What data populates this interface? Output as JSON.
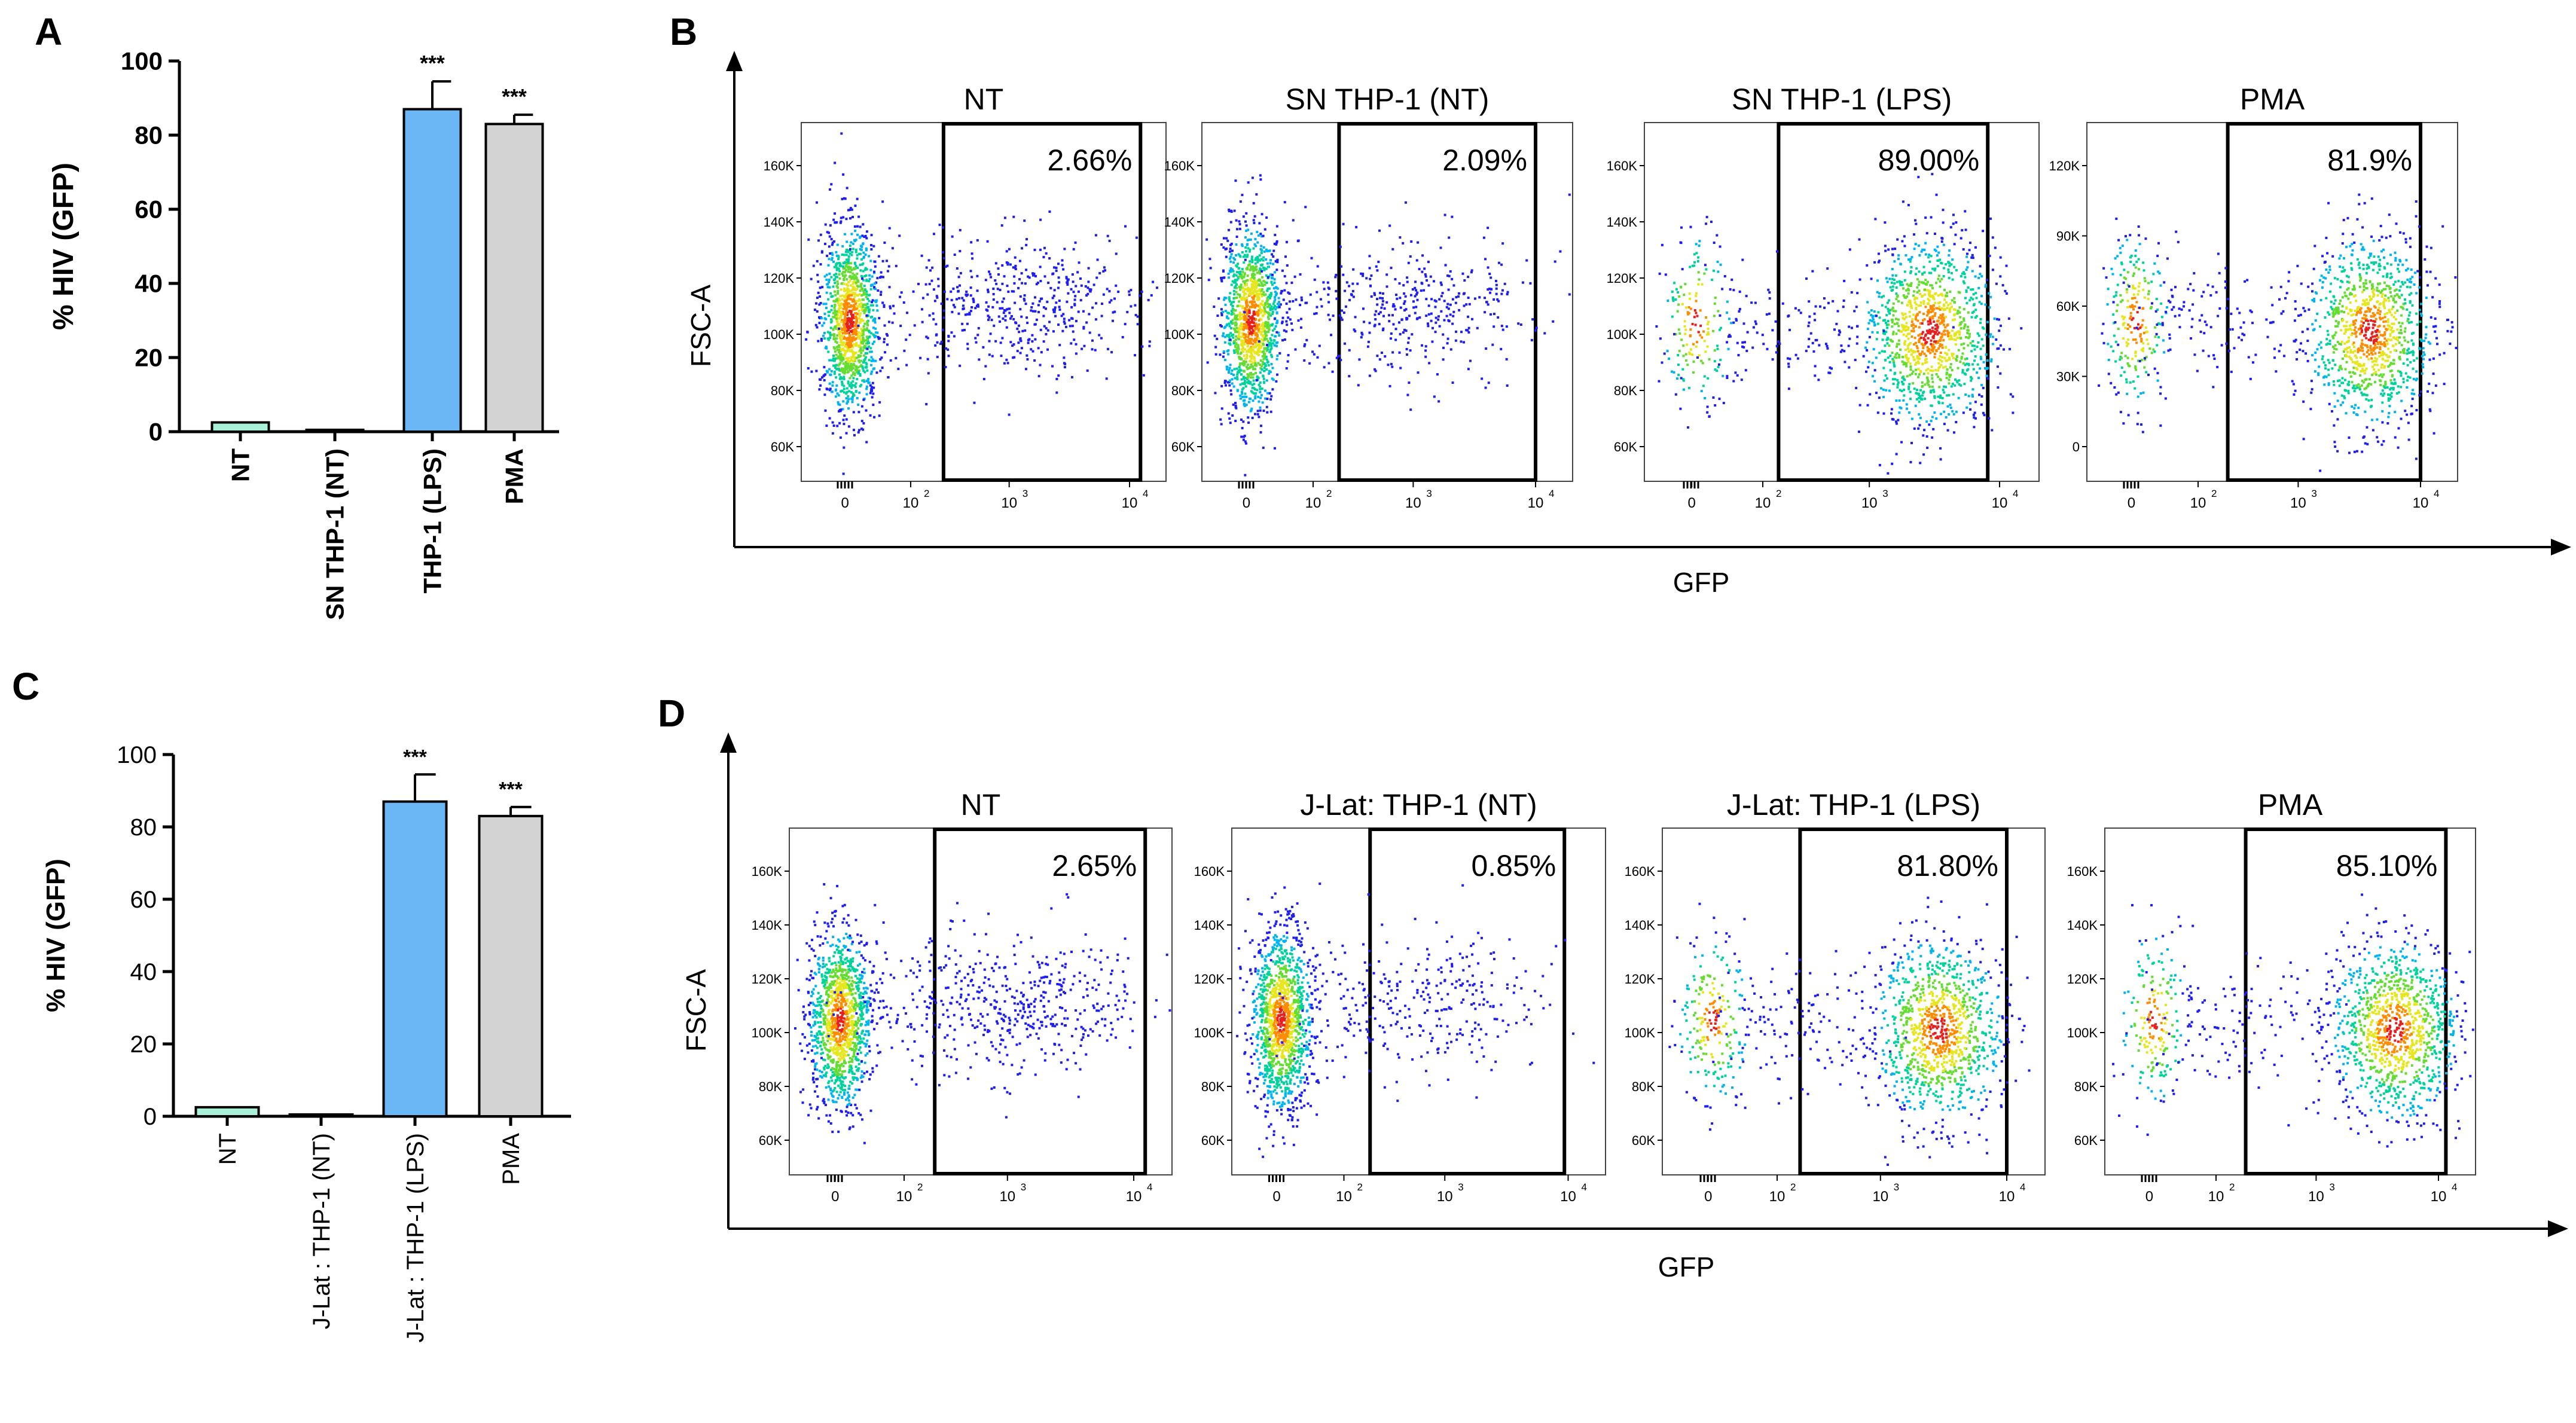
{
  "panels": {
    "A": "A",
    "B": "B",
    "C": "C",
    "D": "D"
  },
  "chart_data": [
    {
      "id": "A",
      "type": "bar",
      "ylabel": "% HIV (GFP)",
      "ylim": [
        0,
        100
      ],
      "yticks": [
        "0",
        "20",
        "40",
        "60",
        "80",
        "100"
      ],
      "categories": [
        "NT",
        "SN THP-1 (NT)",
        "THP-1 (LPS)",
        "PMA"
      ],
      "values": [
        2.5,
        0.5,
        87,
        83
      ],
      "errors": [
        0,
        0,
        7.5,
        2.5
      ],
      "colors": [
        "#a8f0d8",
        "#a8f0d8",
        "#6bb7f5",
        "#d3d3d3"
      ],
      "significance": [
        "",
        "",
        "***",
        "***"
      ]
    },
    {
      "id": "B",
      "type": "scatter",
      "xlabel": "GFP",
      "ylabel": "FSC-A",
      "plots": [
        {
          "title": "NT",
          "gate": "2.66%",
          "yticks": [
            "60K",
            "80K",
            "100K",
            "120K",
            "140K",
            "160K"
          ],
          "xticks": [
            "0",
            "10",
            "10",
            "10"
          ],
          "xexp": [
            "",
            "2",
            "3",
            "4"
          ],
          "neg_fraction": 0.97,
          "pos_fraction": 0.03
        },
        {
          "title": "SN THP-1 (NT)",
          "gate": "2.09%",
          "yticks": [
            "60K",
            "80K",
            "100K",
            "120K",
            "140K",
            "160K"
          ],
          "xticks": [
            "0",
            "10",
            "10",
            "10"
          ],
          "xexp": [
            "",
            "2",
            "3",
            "4"
          ],
          "neg_fraction": 0.98,
          "pos_fraction": 0.02
        },
        {
          "title": "SN THP-1 (LPS)",
          "gate": "89.00%",
          "yticks": [
            "60K",
            "80K",
            "100K",
            "120K",
            "140K",
            "160K"
          ],
          "xticks": [
            "0",
            "10",
            "10",
            "10"
          ],
          "xexp": [
            "",
            "2",
            "3",
            "4"
          ],
          "neg_fraction": 0.11,
          "pos_fraction": 0.89
        },
        {
          "title": "PMA",
          "gate": "81.9%",
          "yticks": [
            "0",
            "30K",
            "60K",
            "90K",
            "120K"
          ],
          "xticks": [
            "0",
            "10",
            "10",
            "10"
          ],
          "xexp": [
            "",
            "2",
            "3",
            "4"
          ],
          "neg_fraction": 0.18,
          "pos_fraction": 0.82
        }
      ]
    },
    {
      "id": "C",
      "type": "bar",
      "ylabel": "% HIV (GFP)",
      "ylim": [
        0,
        100
      ],
      "yticks": [
        "0",
        "20",
        "40",
        "60",
        "80",
        "100"
      ],
      "categories": [
        "NT",
        "J-Lat : THP-1 (NT)",
        "J-Lat : THP-1 (LPS)",
        "PMA"
      ],
      "values": [
        2.5,
        0.5,
        87,
        83
      ],
      "errors": [
        0,
        0,
        7.5,
        2.5
      ],
      "colors": [
        "#a8f0d8",
        "#a8f0d8",
        "#6bb7f5",
        "#d3d3d3"
      ],
      "significance": [
        "",
        "",
        "***",
        "***"
      ]
    },
    {
      "id": "D",
      "type": "scatter",
      "xlabel": "GFP",
      "ylabel": "FSC-A",
      "plots": [
        {
          "title": "NT",
          "gate": "2.65%",
          "yticks": [
            "60K",
            "80K",
            "100K",
            "120K",
            "140K",
            "160K"
          ],
          "xticks": [
            "0",
            "10",
            "10",
            "10"
          ],
          "xexp": [
            "",
            "2",
            "3",
            "4"
          ],
          "neg_fraction": 0.97,
          "pos_fraction": 0.03
        },
        {
          "title": "J-Lat: THP-1 (NT)",
          "gate": "0.85%",
          "yticks": [
            "60K",
            "80K",
            "100K",
            "120K",
            "140K",
            "160K"
          ],
          "xticks": [
            "0",
            "10",
            "10",
            "10"
          ],
          "xexp": [
            "",
            "2",
            "3",
            "4"
          ],
          "neg_fraction": 0.99,
          "pos_fraction": 0.01
        },
        {
          "title": "J-Lat: THP-1 (LPS)",
          "gate": "81.80%",
          "yticks": [
            "60K",
            "80K",
            "100K",
            "120K",
            "140K",
            "160K"
          ],
          "xticks": [
            "0",
            "10",
            "10",
            "10"
          ],
          "xexp": [
            "",
            "2",
            "3",
            "4"
          ],
          "neg_fraction": 0.18,
          "pos_fraction": 0.82
        },
        {
          "title": "PMA",
          "gate": "85.10%",
          "yticks": [
            "60K",
            "80K",
            "100K",
            "120K",
            "140K",
            "160K"
          ],
          "xticks": [
            "0",
            "10",
            "10",
            "10"
          ],
          "xexp": [
            "",
            "2",
            "3",
            "4"
          ],
          "neg_fraction": 0.15,
          "pos_fraction": 0.85
        }
      ]
    }
  ]
}
